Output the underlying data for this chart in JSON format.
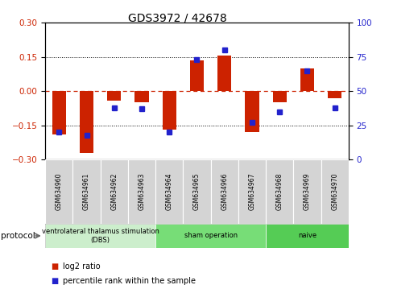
{
  "title": "GDS3972 / 42678",
  "samples": [
    "GSM634960",
    "GSM634961",
    "GSM634962",
    "GSM634963",
    "GSM634964",
    "GSM634965",
    "GSM634966",
    "GSM634967",
    "GSM634968",
    "GSM634969",
    "GSM634970"
  ],
  "log2_ratio": [
    -0.19,
    -0.27,
    -0.04,
    -0.05,
    -0.17,
    0.135,
    0.155,
    -0.18,
    -0.05,
    0.1,
    -0.03
  ],
  "pct_rank": [
    20,
    18,
    38,
    37,
    20,
    73,
    80,
    27,
    35,
    65,
    38
  ],
  "ylim_left": [
    -0.3,
    0.3
  ],
  "ylim_right": [
    0,
    100
  ],
  "yticks_left": [
    -0.3,
    -0.15,
    0,
    0.15,
    0.3
  ],
  "yticks_right": [
    0,
    25,
    50,
    75,
    100
  ],
  "hlines_dotted": [
    -0.15,
    0.15
  ],
  "hline_dashed": 0,
  "bar_color": "#cc2200",
  "dot_color": "#2222cc",
  "protocol_groups": [
    {
      "label": "ventrolateral thalamus stimulation\n(DBS)",
      "start": 0,
      "end": 3,
      "color": "#cceecc"
    },
    {
      "label": "sham operation",
      "start": 4,
      "end": 7,
      "color": "#77dd77"
    },
    {
      "label": "naive",
      "start": 8,
      "end": 10,
      "color": "#55cc55"
    }
  ],
  "protocol_label": "protocol",
  "legend_items": [
    {
      "label": "log2 ratio",
      "color": "#cc2200"
    },
    {
      "label": "percentile rank within the sample",
      "color": "#2222cc"
    }
  ],
  "background_color": "#ffffff",
  "bar_width": 0.5,
  "dot_size": 5
}
